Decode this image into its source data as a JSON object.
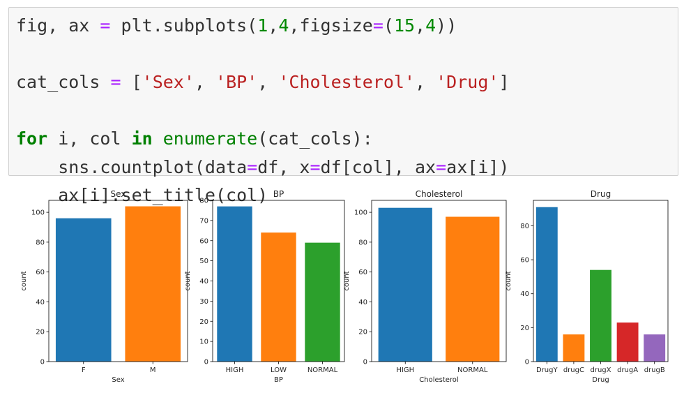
{
  "code_cell": {
    "lines": [
      [
        {
          "t": "fig, ax ",
          "c": ""
        },
        {
          "t": "=",
          "c": "op"
        },
        {
          "t": " plt.subplots(",
          "c": ""
        },
        {
          "t": "1",
          "c": "num"
        },
        {
          "t": ",",
          "c": ""
        },
        {
          "t": "4",
          "c": "num"
        },
        {
          "t": ",figsize",
          "c": ""
        },
        {
          "t": "=",
          "c": "op"
        },
        {
          "t": "(",
          "c": ""
        },
        {
          "t": "15",
          "c": "num"
        },
        {
          "t": ",",
          "c": ""
        },
        {
          "t": "4",
          "c": "num"
        },
        {
          "t": "))",
          "c": ""
        }
      ],
      [],
      [
        {
          "t": "cat_cols ",
          "c": ""
        },
        {
          "t": "=",
          "c": "op"
        },
        {
          "t": " [",
          "c": ""
        },
        {
          "t": "'Sex'",
          "c": "str"
        },
        {
          "t": ", ",
          "c": ""
        },
        {
          "t": "'BP'",
          "c": "str"
        },
        {
          "t": ", ",
          "c": ""
        },
        {
          "t": "'Cholesterol'",
          "c": "str"
        },
        {
          "t": ", ",
          "c": ""
        },
        {
          "t": "'Drug'",
          "c": "str"
        },
        {
          "t": "]",
          "c": ""
        }
      ],
      [],
      [
        {
          "t": "for",
          "c": "kw"
        },
        {
          "t": " i, col ",
          "c": ""
        },
        {
          "t": "in",
          "c": "kw"
        },
        {
          "t": " ",
          "c": ""
        },
        {
          "t": "enumerate",
          "c": "func"
        },
        {
          "t": "(cat_cols):",
          "c": ""
        }
      ],
      [
        {
          "t": "    sns.countplot(data",
          "c": ""
        },
        {
          "t": "=",
          "c": "op"
        },
        {
          "t": "df, x",
          "c": ""
        },
        {
          "t": "=",
          "c": "op"
        },
        {
          "t": "df[col], ax",
          "c": ""
        },
        {
          "t": "=",
          "c": "op"
        },
        {
          "t": "ax[i])",
          "c": ""
        }
      ],
      [
        {
          "t": "    ax[i].set_title(col)",
          "c": ""
        }
      ]
    ]
  },
  "token_colors": {
    "num": "#008800",
    "op": "#aa22ff",
    "str": "#ba2121",
    "kw": "#008000",
    "func": "#008000"
  },
  "chart_data": [
    {
      "type": "bar",
      "title": "Sex",
      "xlabel": "Sex",
      "ylabel": "count",
      "categories": [
        "F",
        "M"
      ],
      "values": [
        96,
        104
      ],
      "colors": [
        "#1f77b4",
        "#ff7f0e"
      ],
      "ylim": [
        0,
        108
      ],
      "yticks": [
        0,
        20,
        40,
        60,
        80,
        100
      ]
    },
    {
      "type": "bar",
      "title": "BP",
      "xlabel": "BP",
      "ylabel": "count",
      "categories": [
        "HIGH",
        "LOW",
        "NORMAL"
      ],
      "values": [
        77,
        64,
        59
      ],
      "colors": [
        "#1f77b4",
        "#ff7f0e",
        "#2ca02c"
      ],
      "ylim": [
        0,
        80
      ],
      "yticks": [
        0,
        10,
        20,
        30,
        40,
        50,
        60,
        70,
        80
      ]
    },
    {
      "type": "bar",
      "title": "Cholesterol",
      "xlabel": "Cholesterol",
      "ylabel": "count",
      "categories": [
        "HIGH",
        "NORMAL"
      ],
      "values": [
        103,
        97
      ],
      "colors": [
        "#1f77b4",
        "#ff7f0e"
      ],
      "ylim": [
        0,
        108
      ],
      "yticks": [
        0,
        20,
        40,
        60,
        80,
        100
      ]
    },
    {
      "type": "bar",
      "title": "Drug",
      "xlabel": "Drug",
      "ylabel": "count",
      "categories": [
        "DrugY",
        "drugC",
        "drugX",
        "drugA",
        "drugB"
      ],
      "values": [
        91,
        16,
        54,
        23,
        16
      ],
      "colors": [
        "#1f77b4",
        "#ff7f0e",
        "#2ca02c",
        "#d62728",
        "#9467bd"
      ],
      "ylim": [
        0,
        95
      ],
      "yticks": [
        0,
        20,
        40,
        60,
        80
      ]
    }
  ]
}
